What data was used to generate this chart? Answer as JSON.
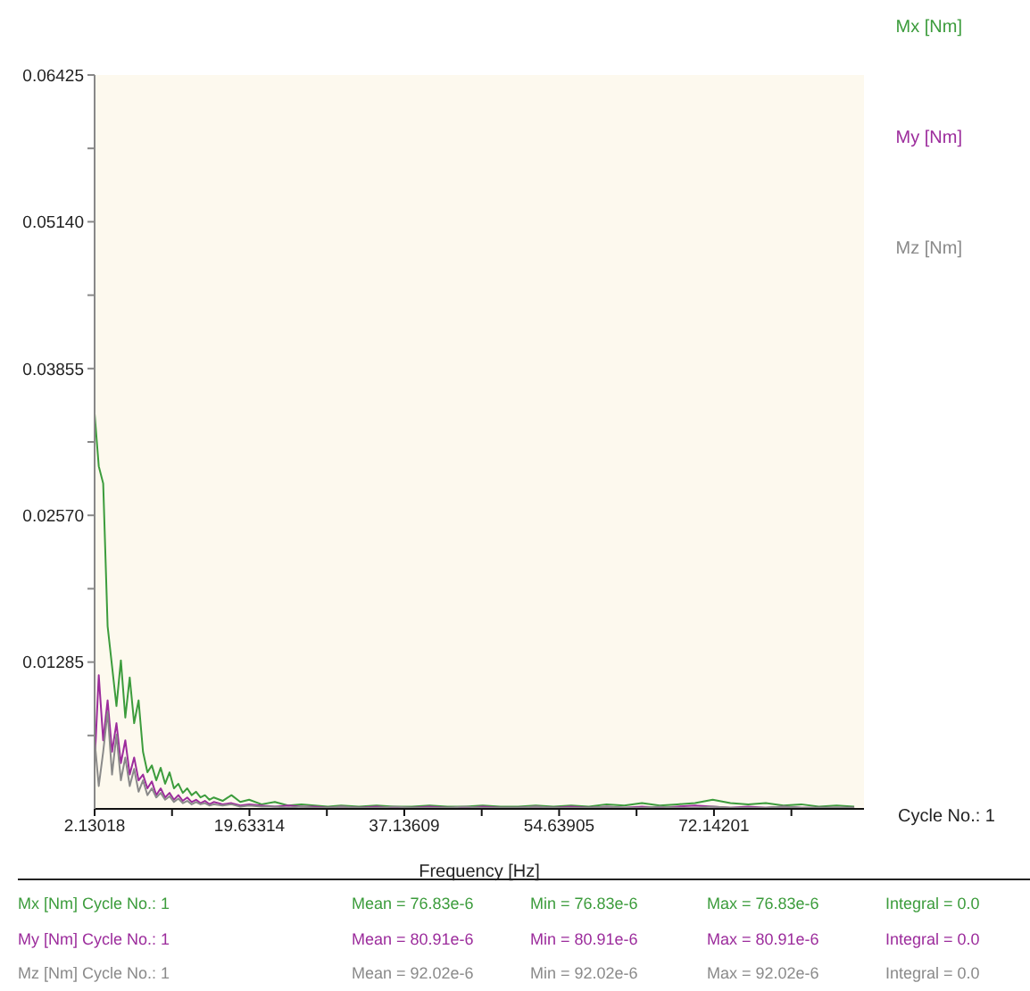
{
  "chart_data": {
    "type": "line",
    "xlabel": "Frequency [Hz]",
    "x": [
      2.13018,
      2.6,
      3.1,
      3.6,
      4.1,
      4.6,
      5.1,
      5.6,
      6.1,
      6.6,
      7.1,
      7.6,
      8.1,
      8.6,
      9.1,
      9.6,
      10.1,
      10.6,
      11.1,
      11.6,
      12.1,
      12.6,
      13.1,
      13.6,
      14.1,
      14.6,
      15.1,
      15.6,
      16.6,
      17.6,
      18.6,
      19.6,
      21,
      22.5,
      24,
      25.5,
      27,
      28.5,
      30,
      32,
      34,
      36,
      38,
      40,
      42,
      44,
      46,
      48,
      50,
      52,
      54,
      56,
      58,
      60,
      62,
      64,
      66,
      68,
      70,
      72,
      74,
      76,
      78,
      80,
      82,
      84,
      86,
      88
    ],
    "xlim": [
      2.13018,
      89.1
    ],
    "xticks": [
      2.13018,
      {
        "value": 10.88166,
        "label": null
      },
      19.63314,
      {
        "value": 28.38462,
        "label": null
      },
      37.13609,
      {
        "value": 45.88757,
        "label": null
      },
      54.63905,
      {
        "value": 63.39053,
        "label": null
      },
      72.14201,
      {
        "value": 80.89349,
        "label": null
      }
    ],
    "ylim": [
      0,
      0.06425
    ],
    "yticks": [
      {
        "value": 0.006425,
        "label": null
      },
      0.01285,
      {
        "value": 0.019275,
        "label": null
      },
      {
        "value": 0.0257,
        "label": "0.02570"
      },
      {
        "value": 0.032125,
        "label": null
      },
      0.03855,
      {
        "value": 0.044975,
        "label": null
      },
      {
        "value": 0.0514,
        "label": "0.05140"
      },
      {
        "value": 0.057825,
        "label": null
      },
      0.06425
    ],
    "series": [
      {
        "name": "Mx [Nm]",
        "color": "#3c9c3c",
        "values": [
          0.0346,
          0.03,
          0.0285,
          0.016,
          0.0125,
          0.009,
          0.013,
          0.008,
          0.0115,
          0.0075,
          0.0095,
          0.005,
          0.0032,
          0.0038,
          0.0025,
          0.0036,
          0.0022,
          0.0032,
          0.0018,
          0.0022,
          0.0014,
          0.0018,
          0.0012,
          0.0015,
          0.001,
          0.0012,
          0.0008,
          0.001,
          0.0007,
          0.0012,
          0.0006,
          0.0008,
          0.0004,
          0.0006,
          0.0003,
          0.0004,
          0.0003,
          0.0002,
          0.0003,
          0.0002,
          0.0003,
          0.0002,
          0.0002,
          0.0003,
          0.0002,
          0.0002,
          0.0003,
          0.0002,
          0.0002,
          0.0003,
          0.0002,
          0.0003,
          0.0002,
          0.0004,
          0.0003,
          0.0005,
          0.0003,
          0.0004,
          0.0005,
          0.0008,
          0.0005,
          0.0004,
          0.0005,
          0.0003,
          0.0004,
          0.0002,
          0.0003,
          0.0002
        ]
      },
      {
        "name": "My [Nm]",
        "color": "#9c2c9c",
        "values": [
          0.004,
          0.0117,
          0.006,
          0.0095,
          0.005,
          0.0075,
          0.004,
          0.006,
          0.003,
          0.0045,
          0.0025,
          0.003,
          0.0018,
          0.0024,
          0.0012,
          0.0018,
          0.001,
          0.0014,
          0.0008,
          0.0012,
          0.0007,
          0.001,
          0.0006,
          0.0008,
          0.0005,
          0.0007,
          0.0004,
          0.0006,
          0.0004,
          0.0005,
          0.0003,
          0.0004,
          0.0003,
          0.0002,
          0.0003,
          0.0002,
          0.0002,
          0.0001,
          0.0002,
          0.0001,
          0.0002,
          0.0001,
          0.0001,
          0.0002,
          0.0001,
          0.0001,
          0.0002,
          0.0001,
          0.0001,
          0.0002,
          0.0001,
          0.0002,
          0.0001,
          0.0002,
          0.0001,
          0.0002,
          0.0001,
          0.0002,
          0.0003,
          0.0002,
          0.0001,
          0.0002,
          0.0001,
          0.0002,
          0.0001,
          0.0001,
          0.0001,
          0.0001
        ]
      },
      {
        "name": "Mz [Nm]",
        "color": "#8a8a8a",
        "values": [
          0.006,
          0.002,
          0.005,
          0.0085,
          0.003,
          0.0065,
          0.0025,
          0.0045,
          0.002,
          0.0035,
          0.0015,
          0.0025,
          0.0012,
          0.0018,
          0.001,
          0.0014,
          0.0008,
          0.0011,
          0.0006,
          0.0009,
          0.0005,
          0.0007,
          0.0004,
          0.0006,
          0.0004,
          0.0005,
          0.0003,
          0.0004,
          0.0003,
          0.0004,
          0.0002,
          0.0003,
          0.0002,
          0.0002,
          0.0001,
          0.0002,
          0.0001,
          0.0001,
          0.0002,
          0.0001,
          0.0001,
          0.0002,
          0.0001,
          0.0001,
          0.0001,
          0.0002,
          0.0001,
          0.0001,
          0.0001,
          0.0002,
          0.0001,
          0.0001,
          0.0001,
          0.0002,
          0.0001,
          0.0001,
          0.0002,
          0.0001,
          0.0001,
          0.0002,
          0.0001,
          0.0001,
          0.0001,
          0.0002,
          0.0001,
          0.0001,
          0.0001,
          0.0001
        ]
      }
    ],
    "legend": "top right",
    "marker": "none",
    "line_style": "solid",
    "annotations": [
      "Cycle No.: 1",
      "Mx [Nm] Cycle No.: 1",
      "Mean = 76.83e-6",
      "Min = 76.83e-6",
      "Max = 76.83e-6",
      "Integral = 0.0",
      "My [Nm] Cycle No.: 1",
      "Mean = 80.91e-6",
      "Min = 80.91e-6",
      "Max = 80.91e-6",
      "Integral = 0.0",
      "Mz [Nm] Cycle No.: 1",
      "Mean = 92.02e-6",
      "Min = 92.02e-6",
      "Max = 92.02e-6",
      "Integral = 0.0"
    ]
  }
}
